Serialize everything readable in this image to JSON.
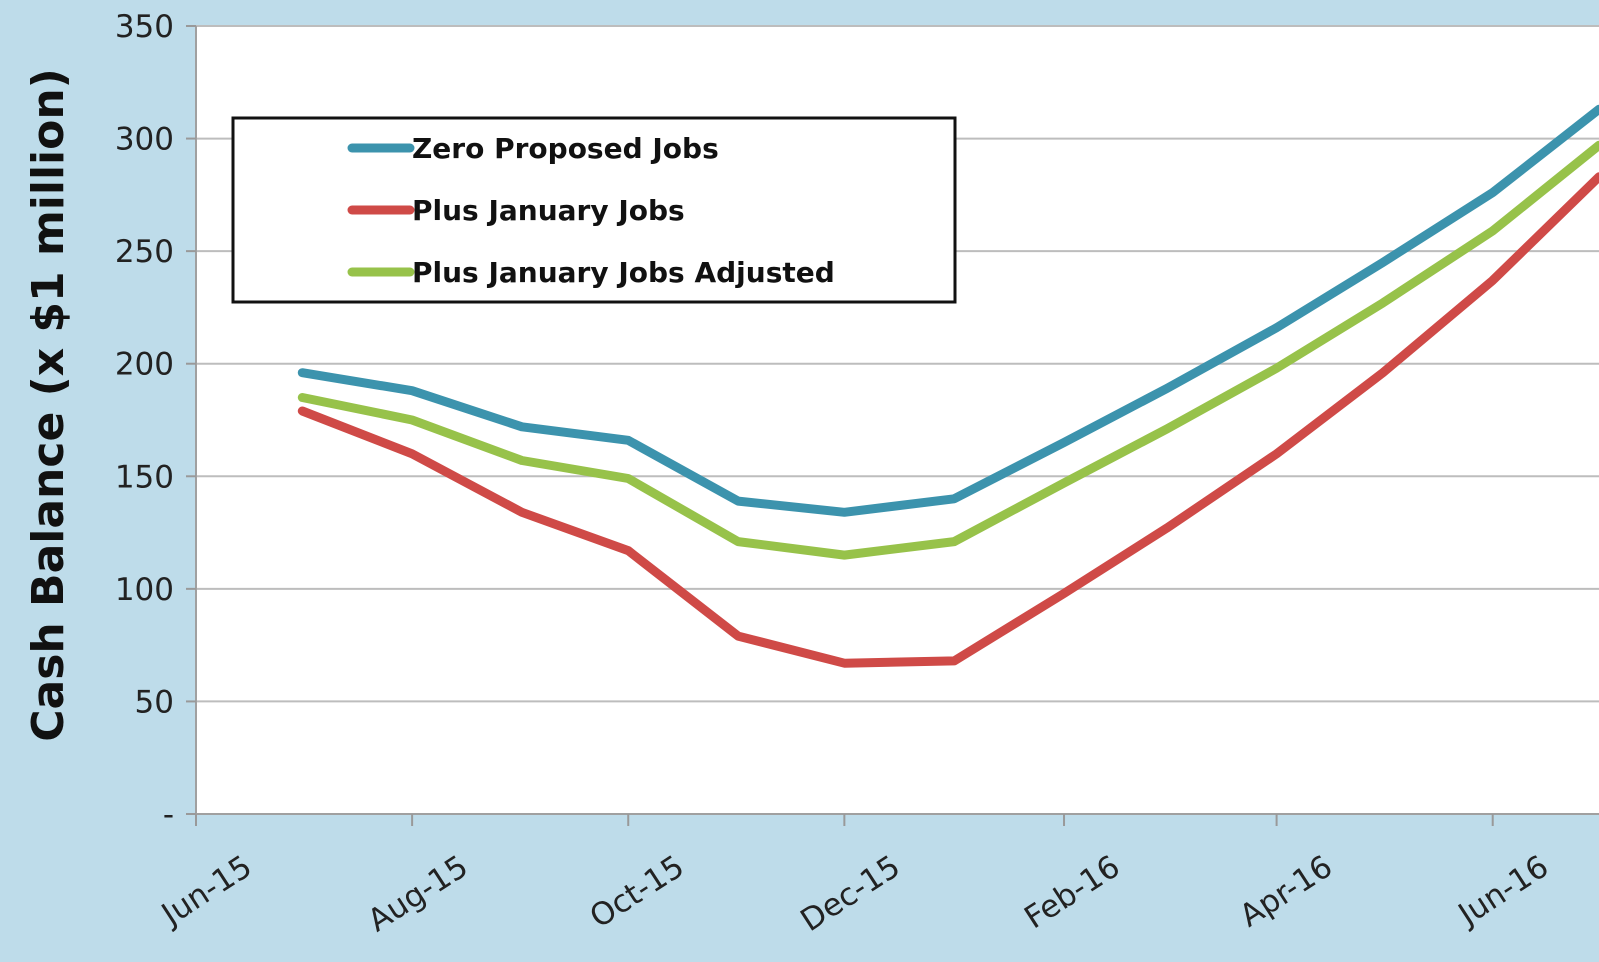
{
  "chart_data": {
    "type": "line",
    "title": "",
    "xlabel": "",
    "ylabel": "Cash Balance (x $1 million)",
    "ylim": [
      0,
      350
    ],
    "yticks": [
      0,
      50,
      100,
      150,
      200,
      250,
      300,
      350
    ],
    "ytick_labels": [
      "-",
      "50",
      "100",
      "150",
      "200",
      "250",
      "300",
      "350"
    ],
    "xtick_labels": [
      "Jun-15",
      "Aug-15",
      "Oct-15",
      "Dec-15",
      "Feb-16",
      "Apr-16",
      "Jun-16"
    ],
    "grid": true,
    "legend_position": "top-left",
    "x": [
      "2015-06-30",
      "2015-07-31",
      "2015-08-31",
      "2015-09-30",
      "2015-10-31",
      "2015-11-30",
      "2015-12-31",
      "2016-01-31",
      "2016-02-29",
      "2016-03-31",
      "2016-04-30",
      "2016-05-31",
      "2016-06-30"
    ],
    "series": [
      {
        "name": "Zero Proposed Jobs",
        "color": "#3c93ad",
        "values": [
          196,
          188,
          172,
          166,
          139,
          134,
          140,
          165,
          189,
          216,
          245,
          276,
          313
        ]
      },
      {
        "name": "Plus January Jobs",
        "color": "#cf4a47",
        "values": [
          179,
          160,
          134,
          117,
          79,
          67,
          68,
          98,
          127,
          160,
          196,
          237,
          283
        ]
      },
      {
        "name": "Plus January Jobs Adjusted",
        "color": "#97c24a",
        "values": [
          185,
          175,
          157,
          149,
          121,
          115,
          121,
          147,
          171,
          198,
          227,
          259,
          297
        ]
      }
    ]
  }
}
